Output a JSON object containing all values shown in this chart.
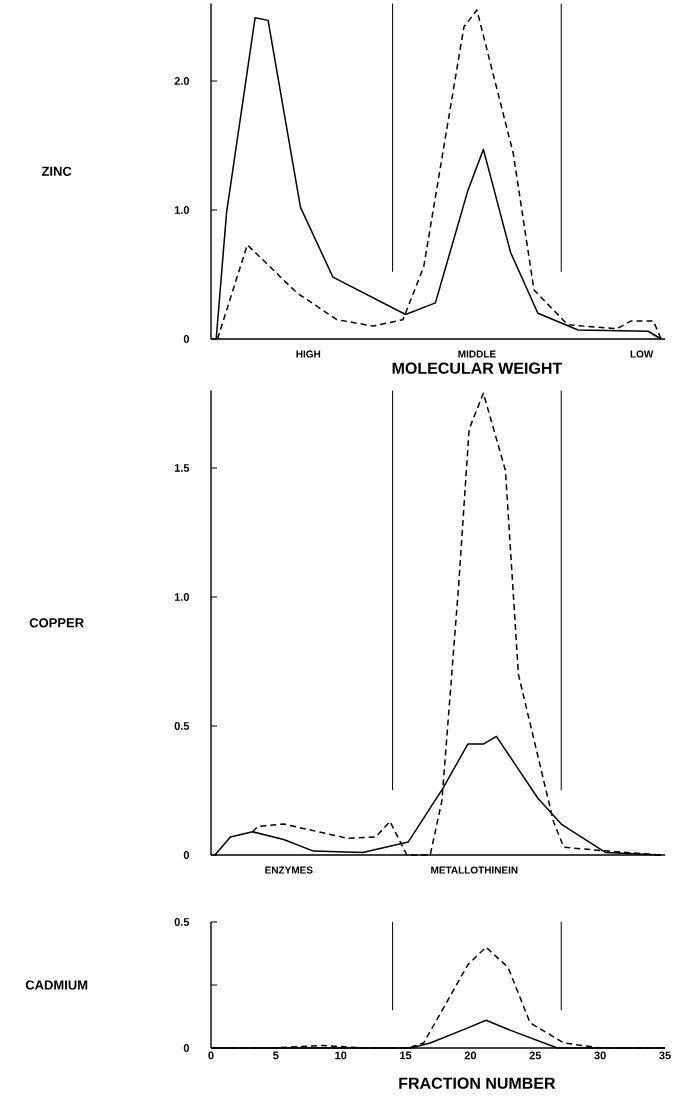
{
  "chart_data": [
    {
      "type": "line",
      "ylabel": "ZINC",
      "xlabel": "MOLECULAR WEIGHT",
      "annotations": [
        "HIGH",
        "MIDDLE",
        "LOW"
      ],
      "xlim": [
        0,
        35
      ],
      "ylim": [
        0,
        2.6
      ],
      "yticks": [
        0,
        {
          "value": 1,
          "label": "1.0"
        },
        {
          "value": 2,
          "label": "2.0"
        }
      ],
      "tick_labels": "y",
      "ref_lines": [
        {
          "axis": "x",
          "value": 14,
          "color": "#000000"
        },
        {
          "axis": "x",
          "value": 27,
          "color": "#000000"
        }
      ],
      "series": [
        {
          "color": "#000000",
          "line_style": "solid",
          "x": [
            0.4,
            1.2,
            3.4,
            4.4,
            6.9,
            9.4,
            15.0,
            17.3,
            19.8,
            21.0,
            23.1,
            25.2,
            28.3,
            33.7,
            34.7
          ],
          "values": [
            0,
            0.98,
            2.49,
            2.47,
            1.02,
            0.48,
            0.19,
            0.28,
            1.15,
            1.47,
            0.67,
            0.2,
            0.07,
            0.06,
            0
          ]
        },
        {
          "color": "#000000",
          "line_style": "dashed",
          "x": [
            0.5,
            2.8,
            6.6,
            9.7,
            12.5,
            14.8,
            16.4,
            19.5,
            20.5,
            23.3,
            24.9,
            27.5,
            31.3,
            32.4,
            34.1,
            34.7
          ],
          "values": [
            0,
            0.73,
            0.36,
            0.15,
            0.1,
            0.15,
            0.56,
            2.42,
            2.55,
            1.44,
            0.38,
            0.11,
            0.08,
            0.14,
            0.14,
            0
          ]
        }
      ]
    },
    {
      "type": "line",
      "ylabel": "COPPER",
      "annotations": [
        "ENZYMES",
        "METALLOTHINEIN"
      ],
      "xlim": [
        0,
        35
      ],
      "ylim": [
        0,
        1.8
      ],
      "yticks": [
        0,
        0.5,
        {
          "value": 1,
          "label": "1.0"
        },
        1.5
      ],
      "tick_labels": "y",
      "ref_lines": [
        {
          "axis": "x",
          "value": 14,
          "color": "#000000"
        },
        {
          "axis": "x",
          "value": 27,
          "color": "#000000"
        }
      ],
      "series": [
        {
          "color": "#000000",
          "line_style": "solid",
          "x": [
            0.3,
            1.5,
            3.2,
            5.6,
            7.9,
            11.7,
            15.2,
            17.9,
            19.8,
            21.0,
            22.0,
            25.2,
            27.0,
            30.4,
            34.7
          ],
          "values": [
            0,
            0.07,
            0.09,
            0.06,
            0.015,
            0.01,
            0.05,
            0.26,
            0.43,
            0.43,
            0.46,
            0.22,
            0.12,
            0.01,
            0
          ]
        },
        {
          "color": "#000000",
          "line_style": "dashed",
          "x": [
            3.2,
            3.6,
            5.6,
            10.5,
            12.7,
            13.8,
            15.1,
            16.9,
            17.8,
            19.1,
            19.9,
            21.0,
            22.7,
            23.7,
            26.4,
            27.2,
            30.6,
            34.7
          ],
          "values": [
            0.09,
            0.11,
            0.12,
            0.065,
            0.07,
            0.13,
            0,
            0,
            0.21,
            1.05,
            1.65,
            1.79,
            1.49,
            0.7,
            0.13,
            0.03,
            0.015,
            0
          ]
        }
      ]
    },
    {
      "type": "line",
      "ylabel": "CADMIUM",
      "xlabel": "FRACTION NUMBER",
      "xlim": [
        0,
        35
      ],
      "ylim": [
        0,
        0.5
      ],
      "xticks": [
        0,
        5,
        10,
        15,
        20,
        25,
        30,
        35
      ],
      "yticks": [
        0,
        {
          "value": 0.25,
          "label": null
        },
        0.5
      ],
      "ref_lines": [
        {
          "axis": "x",
          "value": 14,
          "color": "#000000"
        },
        {
          "axis": "x",
          "value": 27,
          "color": "#000000"
        }
      ],
      "series": [
        {
          "color": "#000000",
          "line_style": "solid",
          "x": [
            0,
            15.4,
            16.9,
            19.8,
            21.2,
            23.1,
            26.7,
            35
          ],
          "values": [
            0,
            0,
            0.02,
            0.08,
            0.11,
            0.07,
            0,
            0
          ]
        },
        {
          "color": "#000000",
          "line_style": "dashed",
          "x": [
            0,
            4.8,
            8.6,
            11.7,
            15.2,
            16.4,
            19.8,
            21.2,
            22.9,
            24.6,
            27.2,
            30,
            35
          ],
          "values": [
            0,
            0,
            0.01,
            0,
            0,
            0.02,
            0.33,
            0.4,
            0.32,
            0.1,
            0.02,
            0,
            0
          ]
        }
      ]
    }
  ]
}
